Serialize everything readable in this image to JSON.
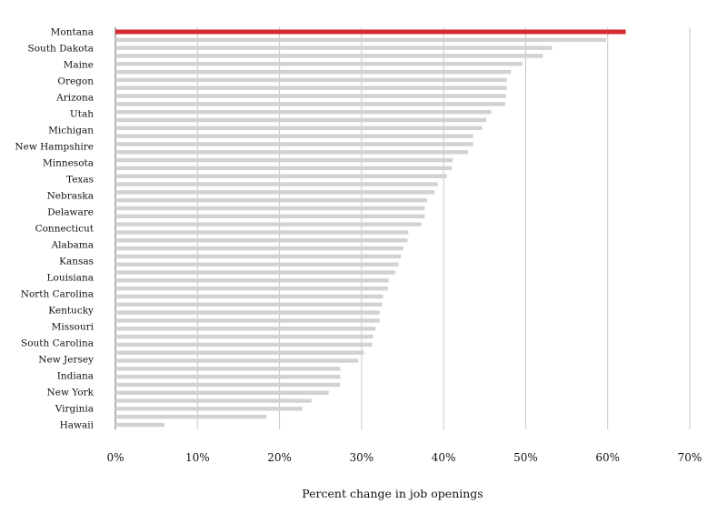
{
  "chart_data": {
    "type": "bar",
    "orientation": "horizontal",
    "categories": [
      "Montana",
      "",
      "South Dakota",
      "",
      "Maine",
      "",
      "Oregon",
      "",
      "Arizona",
      "",
      "Utah",
      "",
      "Michigan",
      "",
      "New Hampshire",
      "",
      "Minnesota",
      "",
      "Texas",
      "",
      "Nebraska",
      "",
      "Delaware",
      "",
      "Connecticut",
      "",
      "Alabama",
      "",
      "Kansas",
      "",
      "Louisiana",
      "",
      "North Carolina",
      "",
      "Kentucky",
      "",
      "Missouri",
      "",
      "South Carolina",
      "",
      "New Jersey",
      "",
      "Indiana",
      "",
      "New York",
      "",
      "Virginia",
      "",
      "Hawaii",
      ""
    ],
    "values": [
      62.2,
      59.8,
      53.2,
      52.1,
      49.6,
      48.2,
      47.7,
      47.7,
      47.6,
      47.5,
      45.8,
      45.2,
      44.7,
      43.6,
      43.6,
      43.0,
      41.1,
      41.0,
      40.4,
      39.3,
      38.9,
      38.0,
      37.7,
      37.7,
      37.3,
      35.7,
      35.6,
      35.1,
      34.8,
      34.5,
      34.1,
      33.3,
      33.2,
      32.6,
      32.5,
      32.2,
      32.2,
      31.7,
      31.4,
      31.3,
      30.3,
      29.6,
      27.4,
      27.4,
      27.4,
      26.0,
      23.9,
      22.8,
      18.4,
      6.0
    ],
    "visible_labels": [
      "Montana",
      "South Dakota",
      "Maine",
      "Oregon",
      "Arizona",
      "Utah",
      "Michigan",
      "New Hampshire",
      "Minnesota",
      "Texas",
      "Nebraska",
      "Delaware",
      "Connecticut",
      "Alabama",
      "Kansas",
      "Louisiana",
      "North Carolina",
      "Kentucky",
      "Missouri",
      "South Carolina",
      "New Jersey",
      "Indiana",
      "New York",
      "Virginia",
      "Hawaii"
    ],
    "highlight": "Montana",
    "xlabel": "Percent change in job openings",
    "ylabel": "",
    "title": "",
    "xlim": [
      0,
      70
    ],
    "xticks": [
      "0%",
      "10%",
      "20%",
      "30%",
      "40%",
      "50%",
      "60%",
      "70%"
    ],
    "grid": "vertical",
    "colors": {
      "bar": "#d2d2d4",
      "highlight": "#d42a30",
      "grid": "#c8c8c8"
    }
  }
}
